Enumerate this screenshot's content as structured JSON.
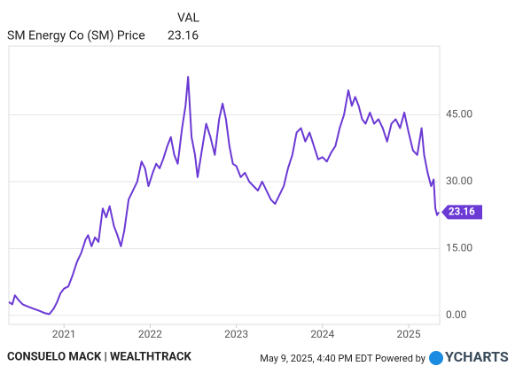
{
  "chart_data": {
    "type": "line",
    "legend_header": "VAL",
    "series": [
      {
        "name": "SM Energy Co (SM) Price",
        "color": "#6b39d4",
        "x": [
          2020.36,
          2020.4,
          2020.43,
          2020.47,
          2020.52,
          2020.58,
          2020.65,
          2020.72,
          2020.78,
          2020.83,
          2020.88,
          2020.92,
          2020.96,
          2021.0,
          2021.05,
          2021.1,
          2021.15,
          2021.2,
          2021.25,
          2021.28,
          2021.32,
          2021.36,
          2021.4,
          2021.45,
          2021.49,
          2021.53,
          2021.58,
          2021.62,
          2021.66,
          2021.7,
          2021.75,
          2021.8,
          2021.85,
          2021.9,
          2021.94,
          2021.98,
          2022.03,
          2022.07,
          2022.11,
          2022.15,
          2022.2,
          2022.24,
          2022.28,
          2022.32,
          2022.37,
          2022.41,
          2022.44,
          2022.48,
          2022.52,
          2022.55,
          2022.6,
          2022.65,
          2022.7,
          2022.75,
          2022.8,
          2022.84,
          2022.88,
          2022.92,
          2022.96,
          2023.0,
          2023.05,
          2023.1,
          2023.15,
          2023.2,
          2023.25,
          2023.3,
          2023.35,
          2023.4,
          2023.45,
          2023.5,
          2023.55,
          2023.6,
          2023.65,
          2023.7,
          2023.75,
          2023.8,
          2023.85,
          2023.9,
          2023.95,
          2024.0,
          2024.05,
          2024.1,
          2024.15,
          2024.2,
          2024.25,
          2024.3,
          2024.34,
          2024.38,
          2024.42,
          2024.46,
          2024.5,
          2024.55,
          2024.6,
          2024.65,
          2024.7,
          2024.75,
          2024.8,
          2024.85,
          2024.9,
          2024.95,
          2025.0,
          2025.05,
          2025.1,
          2025.15,
          2025.18,
          2025.22,
          2025.26,
          2025.29,
          2025.31,
          2025.33,
          2025.35
        ],
        "values": [
          3,
          2.5,
          4.5,
          3.5,
          2.5,
          2,
          1.5,
          1,
          0.5,
          0.3,
          1.5,
          3,
          5,
          6,
          6.5,
          9,
          12,
          14,
          17,
          18,
          15.5,
          17.5,
          16.5,
          24,
          22,
          24.5,
          20,
          18,
          15.5,
          19,
          26,
          28,
          30,
          34.5,
          33,
          29,
          32,
          34,
          33,
          35,
          38,
          40,
          36,
          34,
          42,
          47,
          53.5,
          40,
          36,
          31,
          37,
          43,
          40,
          36,
          44,
          47.5,
          44,
          38,
          34,
          33.5,
          31,
          32,
          30,
          29,
          28,
          30,
          28,
          26,
          25,
          27,
          29,
          33,
          36,
          41,
          42,
          39,
          41,
          38,
          35,
          35.5,
          34.5,
          36.5,
          38,
          42,
          45,
          50.5,
          47,
          49,
          47,
          44,
          43,
          45.5,
          43,
          44,
          42,
          39,
          43,
          44,
          42,
          45.5,
          41,
          37,
          36,
          42,
          36,
          32,
          29,
          30.5,
          24,
          22.5,
          23.16
        ]
      }
    ],
    "xlim": [
      2020.36,
      2025.36
    ],
    "xticks": [
      2021,
      2022,
      2023,
      2024,
      2025
    ],
    "ylim": [
      -2,
      60.4
    ],
    "yticks": [
      {
        "value": 0,
        "label": "0.00"
      },
      {
        "value": 15,
        "label": "15.00"
      },
      {
        "value": 30,
        "label": "30.00"
      },
      {
        "value": 45,
        "label": "45.00"
      }
    ],
    "grid": true
  },
  "footer": {
    "source": "CONSUELO MACK | WEALTHTRACK",
    "timestamp": "May 9, 2025, 4:40 PM EDT Powered by",
    "logo": "YCHARTS"
  }
}
